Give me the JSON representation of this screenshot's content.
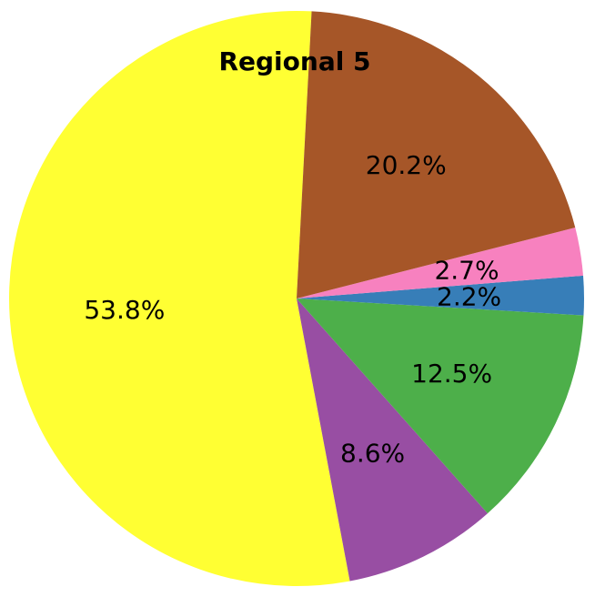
{
  "chart_data": {
    "type": "pie",
    "title": "Regional 5",
    "start_angle_deg": 87,
    "direction": "counterclockwise",
    "slices": [
      {
        "label": "53.8%",
        "value": 53.8,
        "color": "#ffff33"
      },
      {
        "label": "8.6%",
        "value": 8.6,
        "color": "#984ea3"
      },
      {
        "label": "12.5%",
        "value": 12.5,
        "color": "#4daf4a"
      },
      {
        "label": "2.2%",
        "value": 2.2,
        "color": "#377eb8"
      },
      {
        "label": "2.7%",
        "value": 2.7,
        "color": "#f781bf"
      },
      {
        "label": "20.2%",
        "value": 20.2,
        "color": "#a65628"
      }
    ]
  }
}
